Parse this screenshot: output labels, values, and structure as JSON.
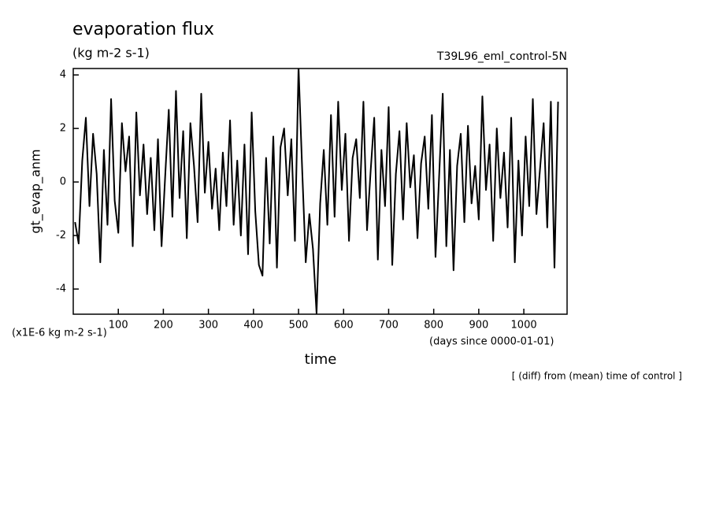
{
  "chart_data": {
    "type": "line",
    "title": "evaporation flux",
    "subtitle": "(kg m-2 s-1)",
    "run_name": "T39L96_eml_control-5N",
    "ylabel": "gt_evap_anm",
    "y_unit_label": "(x1E-6 kg m-2 s-1)",
    "xlabel": "time",
    "x_unit_label": "(days since 0000-01-01)",
    "annotation": "[ (diff) from (mean) time of control ]",
    "color": "#000000",
    "xlim": [
      0,
      1096
    ],
    "ylim": [
      -4.94,
      4.24
    ],
    "xticks": [
      100,
      200,
      300,
      400,
      500,
      600,
      700,
      800,
      900,
      1000
    ],
    "yticks": [
      -4,
      -2,
      0,
      2,
      4
    ],
    "x": [
      4,
      12,
      20,
      28,
      36,
      44,
      52,
      60,
      68,
      76,
      84,
      92,
      100,
      108,
      116,
      124,
      132,
      140,
      148,
      156,
      164,
      172,
      180,
      188,
      196,
      204,
      212,
      220,
      228,
      236,
      244,
      252,
      260,
      268,
      276,
      284,
      292,
      300,
      308,
      316,
      324,
      332,
      340,
      348,
      356,
      364,
      372,
      380,
      388,
      396,
      404,
      412,
      420,
      428,
      436,
      444,
      452,
      460,
      468,
      476,
      484,
      492,
      500,
      508,
      516,
      524,
      532,
      540,
      548,
      556,
      564,
      572,
      580,
      588,
      596,
      604,
      612,
      620,
      628,
      636,
      644,
      652,
      660,
      668,
      676,
      684,
      692,
      700,
      708,
      716,
      724,
      732,
      740,
      748,
      756,
      764,
      772,
      780,
      788,
      796,
      804,
      812,
      820,
      828,
      836,
      844,
      852,
      860,
      868,
      876,
      884,
      892,
      900,
      908,
      916,
      924,
      932,
      940,
      948,
      956,
      964,
      972,
      980,
      988,
      996,
      1004,
      1012,
      1020,
      1028,
      1036,
      1044,
      1052,
      1060,
      1068,
      1076
    ],
    "values": [
      -1.5,
      -2.3,
      0.8,
      2.4,
      -0.9,
      1.8,
      0.3,
      -3.0,
      1.2,
      -1.6,
      3.1,
      -0.7,
      -1.9,
      2.2,
      0.4,
      1.7,
      -2.4,
      2.6,
      -0.5,
      1.4,
      -1.2,
      0.9,
      -1.8,
      1.6,
      -2.4,
      0.2,
      2.7,
      -1.3,
      3.4,
      -0.6,
      1.9,
      -2.1,
      2.2,
      0.6,
      -1.5,
      3.3,
      -0.4,
      1.5,
      -1.0,
      0.5,
      -1.8,
      1.1,
      -0.9,
      2.3,
      -1.6,
      0.8,
      -2.0,
      1.4,
      -2.7,
      2.6,
      -1.1,
      -3.1,
      -3.5,
      0.9,
      -2.3,
      1.7,
      -3.2,
      1.3,
      2.0,
      -0.5,
      1.6,
      -2.2,
      4.3,
      0.5,
      -3.0,
      -1.2,
      -2.5,
      -4.9,
      -0.8,
      1.2,
      -1.6,
      2.5,
      -1.3,
      3.0,
      -0.3,
      1.8,
      -2.2,
      0.9,
      1.6,
      -0.6,
      3.0,
      -1.8,
      0.4,
      2.4,
      -2.9,
      1.2,
      -0.9,
      2.8,
      -3.1,
      0.3,
      1.9,
      -1.4,
      2.2,
      -0.2,
      1.0,
      -2.1,
      0.7,
      1.7,
      -1.0,
      2.5,
      -2.8,
      0.2,
      3.3,
      -2.4,
      1.2,
      -3.3,
      0.6,
      1.8,
      -1.5,
      2.1,
      -0.8,
      0.6,
      -1.4,
      3.2,
      -0.3,
      1.4,
      -2.2,
      2.0,
      -0.6,
      1.1,
      -1.7,
      2.4,
      -3.0,
      0.8,
      -2.0,
      1.7,
      -0.9,
      3.1,
      -1.2,
      0.5,
      2.2,
      -1.7,
      3.0,
      -3.2,
      3.0
    ]
  }
}
